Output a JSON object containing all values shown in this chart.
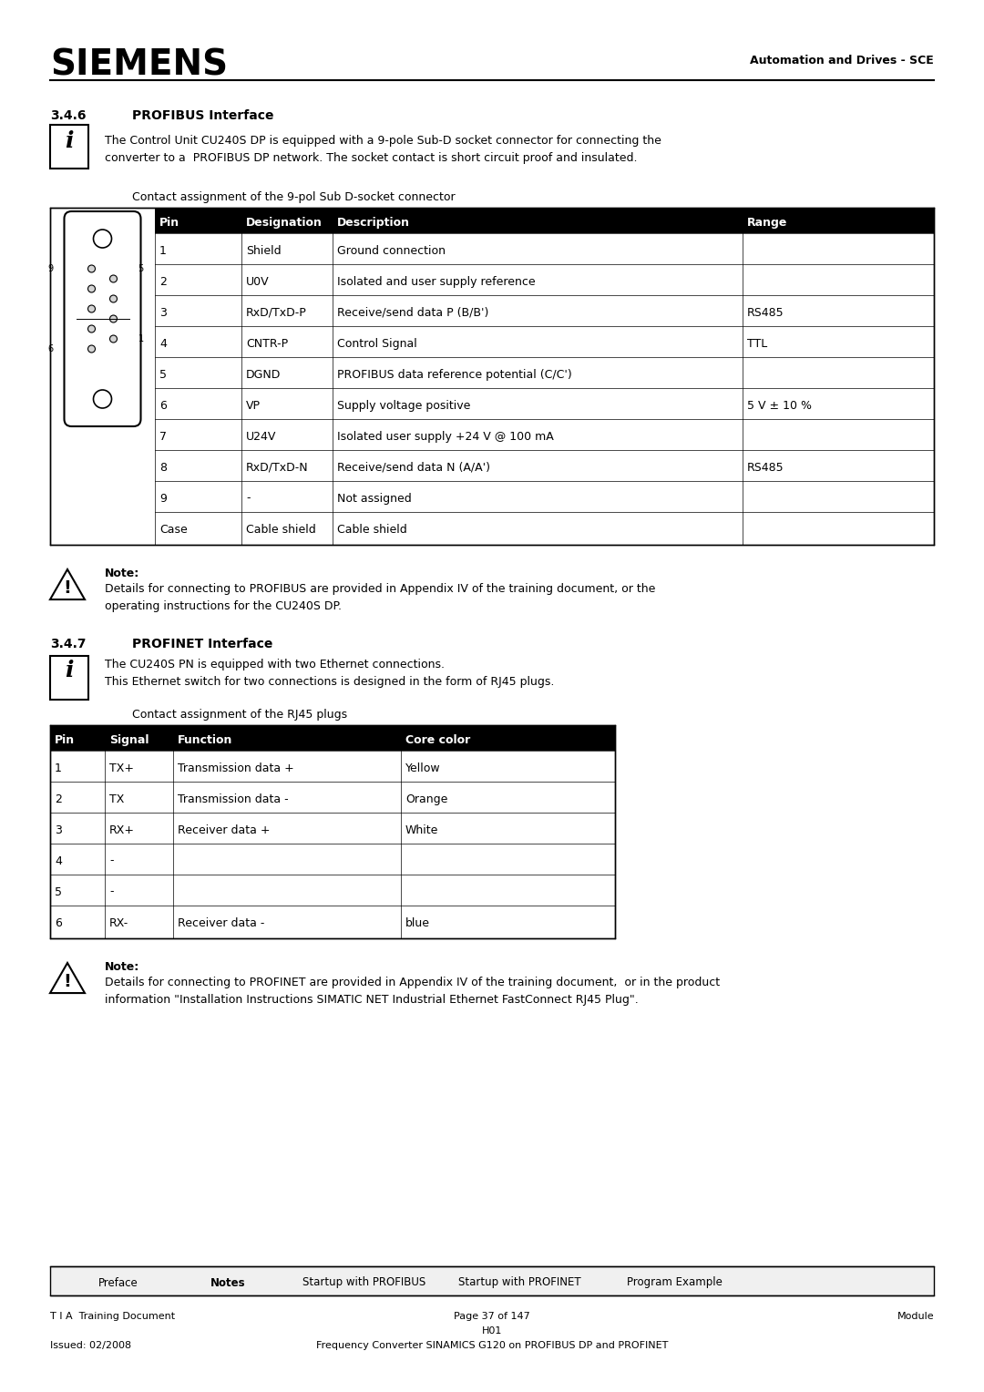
{
  "title_siemens": "SIEMENS",
  "header_right": "Automation and Drives - SCE",
  "section_346": "3.4.6",
  "section_346_title": "PROFIBUS Interface",
  "info_346": "The Control Unit CU240S DP is equipped with a 9-pole Sub-D socket connector for connecting the\nconverter to a  PROFIBUS DP network. The socket contact is short circuit proof and insulated.",
  "contact_label_346": "Contact assignment of the 9-pol Sub D-socket connector",
  "profibus_table_headers": [
    "Pin",
    "Designation",
    "Description",
    "Range"
  ],
  "profibus_table_rows": [
    [
      "1",
      "Shield",
      "Ground connection",
      ""
    ],
    [
      "2",
      "U0V",
      "Isolated and user supply reference",
      ""
    ],
    [
      "3",
      "RxD/TxD-P",
      "Receive/send data P (B/B')",
      "RS485"
    ],
    [
      "4",
      "CNTR-P",
      "Control Signal",
      "TTL"
    ],
    [
      "5",
      "DGND",
      "PROFIBUS data reference potential (C/C')",
      ""
    ],
    [
      "6",
      "VP",
      "Supply voltage positive",
      "5 V ± 10 %"
    ],
    [
      "7",
      "U24V",
      "Isolated user supply +24 V @ 100 mA",
      ""
    ],
    [
      "8",
      "RxD/TxD-N",
      "Receive/send data N (A/A')",
      "RS485"
    ],
    [
      "9",
      "-",
      "Not assigned",
      ""
    ],
    [
      "Case",
      "Cable shield",
      "Cable shield",
      ""
    ]
  ],
  "note_346_title": "Note:",
  "note_346_text": "Details for connecting to PROFIBUS are provided in Appendix IV of the training document, or the\noperating instructions for the CU240S DP.",
  "section_347": "3.4.7",
  "section_347_title": "PROFINET Interface",
  "info_347": "The CU240S PN is equipped with two Ethernet connections.\nThis Ethernet switch for two connections is designed in the form of RJ45 plugs.",
  "contact_label_347": "Contact assignment of the RJ45 plugs",
  "profinet_table_headers": [
    "Pin",
    "Signal",
    "Function",
    "Core color"
  ],
  "profinet_table_rows": [
    [
      "1",
      "TX+",
      "Transmission data +",
      "Yellow"
    ],
    [
      "2",
      "TX",
      "Transmission data -",
      "Orange"
    ],
    [
      "3",
      "RX+",
      "Receiver data +",
      "White"
    ],
    [
      "4",
      "-",
      "",
      ""
    ],
    [
      "5",
      "-",
      "",
      ""
    ],
    [
      "6",
      "RX-",
      "Receiver data -",
      "blue"
    ]
  ],
  "note_347_title": "Note:",
  "note_347_text": "Details for connecting to PROFINET are provided in Appendix IV of the training document,  or in the product\ninformation \"Installation Instructions SIMATIC NET Industrial Ethernet FastConnect RJ45 Plug\".",
  "footer_tabs": [
    "Preface",
    "Notes",
    "Startup with PROFIBUS",
    "Startup with PROFINET",
    "Program Example"
  ],
  "footer_tabs_bold": [
    false,
    true,
    false,
    false,
    false
  ],
  "footer_left1": "T I A  Training Document",
  "footer_center1": "Page 37 of 147",
  "footer_center2": "H01",
  "footer_center3": "Frequency Converter SINAMICS G120 on PROFIBUS DP and PROFINET",
  "footer_right1": "Module",
  "footer_left2": "Issued: 02/2008",
  "bg_color": "#ffffff",
  "text_color": "#000000",
  "table_header_bg": "#000000",
  "table_header_color": "#ffffff",
  "table_border_color": "#000000",
  "table_alt_bg": "#ffffff"
}
